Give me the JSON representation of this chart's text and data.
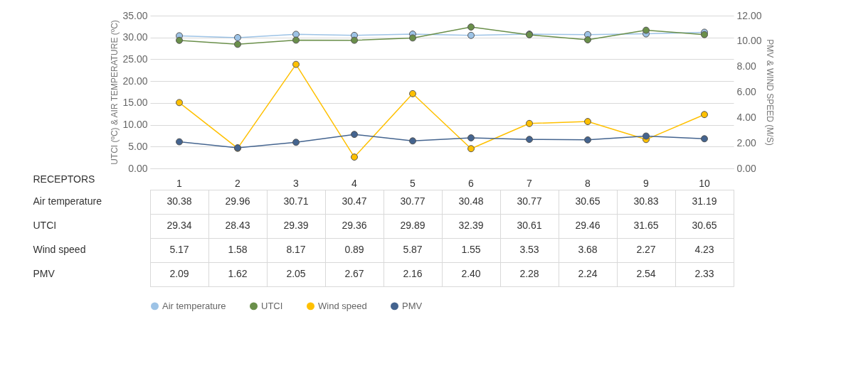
{
  "chart_data": {
    "type": "line",
    "xlabel": "RECEPTORS",
    "ylabel": "UTCI (ºC) & AIR TEMPERATURE (ºC)",
    "y2label": "PMV & WIND SPEED (M/S)",
    "categories": [
      "1",
      "2",
      "3",
      "4",
      "5",
      "6",
      "7",
      "8",
      "9",
      "10"
    ],
    "series": [
      {
        "name": "Air temperature",
        "color": "#9dc3e6",
        "values": [
          30.38,
          29.96,
          30.71,
          30.47,
          30.77,
          30.48,
          30.77,
          30.65,
          30.83,
          31.19
        ],
        "value_labels": [
          "30.38",
          "29.96",
          "30.71",
          "30.47",
          "30.77",
          "30.48",
          "30.77",
          "30.65",
          "30.83",
          "31.19"
        ]
      },
      {
        "name": "UTCI",
        "color": "#6a8f4a",
        "values": [
          29.34,
          28.43,
          29.39,
          29.36,
          29.89,
          32.39,
          30.61,
          29.46,
          31.65,
          30.65
        ],
        "value_labels": [
          "29.34",
          "28.43",
          "29.39",
          "29.36",
          "29.89",
          "32.39",
          "30.61",
          "29.46",
          "31.65",
          "30.65"
        ]
      },
      {
        "name": "Wind speed",
        "color": "#ffc000",
        "axis": "y2",
        "values": [
          5.17,
          1.58,
          8.17,
          0.89,
          5.87,
          1.55,
          3.53,
          3.68,
          2.27,
          4.23
        ],
        "value_labels": [
          "5.17",
          "1.58",
          "8.17",
          "0.89",
          "5.87",
          "1.55",
          "3.53",
          "3.68",
          "2.27",
          "4.23"
        ]
      },
      {
        "name": "PMV",
        "color": "#44648f",
        "axis": "y2",
        "values": [
          2.09,
          1.62,
          2.05,
          2.67,
          2.16,
          2.4,
          2.28,
          2.24,
          2.54,
          2.33
        ],
        "value_labels": [
          "2.09",
          "1.62",
          "2.05",
          "2.67",
          "2.16",
          "2.40",
          "2.28",
          "2.24",
          "2.54",
          "2.33"
        ]
      }
    ],
    "ylim": [
      0,
      35
    ],
    "yticks": [
      {
        "value": 0,
        "label": "0.00"
      },
      {
        "value": 5,
        "label": "5.00"
      },
      {
        "value": 10,
        "label": "10.00"
      },
      {
        "value": 15,
        "label": "15.00"
      },
      {
        "value": 20,
        "label": "20.00"
      },
      {
        "value": 25,
        "label": "25.00"
      },
      {
        "value": 30,
        "label": "30.00"
      },
      {
        "value": 35,
        "label": "35.00"
      }
    ],
    "y2lim": [
      0,
      12
    ],
    "y2ticks": [
      {
        "value": 0,
        "label": "0.00"
      },
      {
        "value": 2,
        "label": "2.00"
      },
      {
        "value": 4,
        "label": "4.00"
      },
      {
        "value": 6,
        "label": "6.00"
      },
      {
        "value": 8,
        "label": "8.00"
      },
      {
        "value": 10,
        "label": "10.00"
      },
      {
        "value": 12,
        "label": "12.00"
      }
    ],
    "grid": "y",
    "legend": "bottom",
    "marker": "circle"
  }
}
